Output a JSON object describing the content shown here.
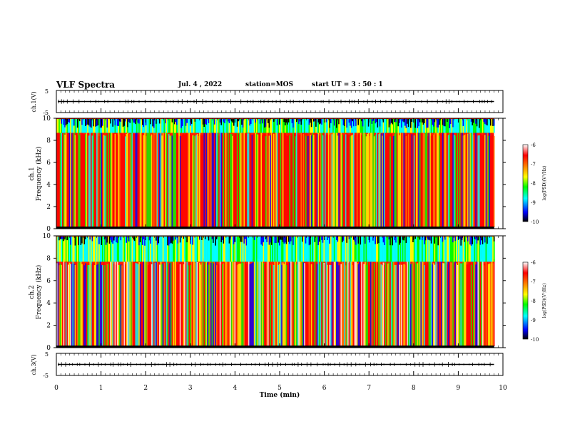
{
  "header": {
    "title": "VLF Spectra",
    "date": "Jul. 4 , 2022",
    "station": "station=MOS",
    "start": "start UT = 3 : 50 : 1"
  },
  "colors": {
    "spectrum": [
      "#000000",
      "#0000ff",
      "#00ffff",
      "#00ff00",
      "#ffff00",
      "#ff8000",
      "#ff0000",
      "#ffffff"
    ],
    "background": "#ffffff",
    "axes": "#000000"
  },
  "chart_data": [
    {
      "type": "line",
      "name": "ch1-waveform",
      "ylabel": "ch.1(V)",
      "ylim": [
        -5,
        5
      ],
      "yticks": [
        "5",
        "-5"
      ],
      "xlim": [
        0,
        10
      ],
      "baseline": 0,
      "grid": false
    },
    {
      "type": "heatmap",
      "name": "ch1-spectrogram",
      "ylabel_line1": "ch.1",
      "ylabel_line2": "Frequency (kHz)",
      "ylim": [
        0,
        10
      ],
      "yticks": [
        "0",
        "2",
        "4",
        "6",
        "8",
        "10"
      ],
      "xlim": [
        0,
        10
      ],
      "data_end_min": 9.8,
      "intense_band_top_khz": 9,
      "colorbar": {
        "label": "log(PSD)(V²/Hz)",
        "range": [
          -10,
          -6
        ],
        "ticks": [
          "-6",
          "-7",
          "-8",
          "-9",
          "-10"
        ]
      }
    },
    {
      "type": "heatmap",
      "name": "ch2-spectrogram",
      "ylabel_line1": "ch.2",
      "ylabel_line2": "Frequency (kHz)",
      "ylim": [
        0,
        10
      ],
      "yticks": [
        "0",
        "2",
        "4",
        "6",
        "8",
        "10"
      ],
      "xlim": [
        0,
        10
      ],
      "data_end_min": 9.8,
      "intense_band_top_khz": 8,
      "colorbar": {
        "label": "log(PSD)(V²/Hz)",
        "range": [
          -10,
          -6
        ],
        "ticks": [
          "-6",
          "-7",
          "-8",
          "-9",
          "-10"
        ]
      }
    },
    {
      "type": "line",
      "name": "ch3-waveform",
      "ylabel": "ch.3(V)",
      "ylim": [
        -5,
        5
      ],
      "yticks": [
        "5",
        "-5"
      ],
      "xlim": [
        0,
        10
      ],
      "baseline": 0,
      "grid": false,
      "xlabel": "Time (min)",
      "xticks": [
        "0",
        "1",
        "2",
        "3",
        "4",
        "5",
        "6",
        "7",
        "8",
        "9",
        "10"
      ]
    }
  ]
}
